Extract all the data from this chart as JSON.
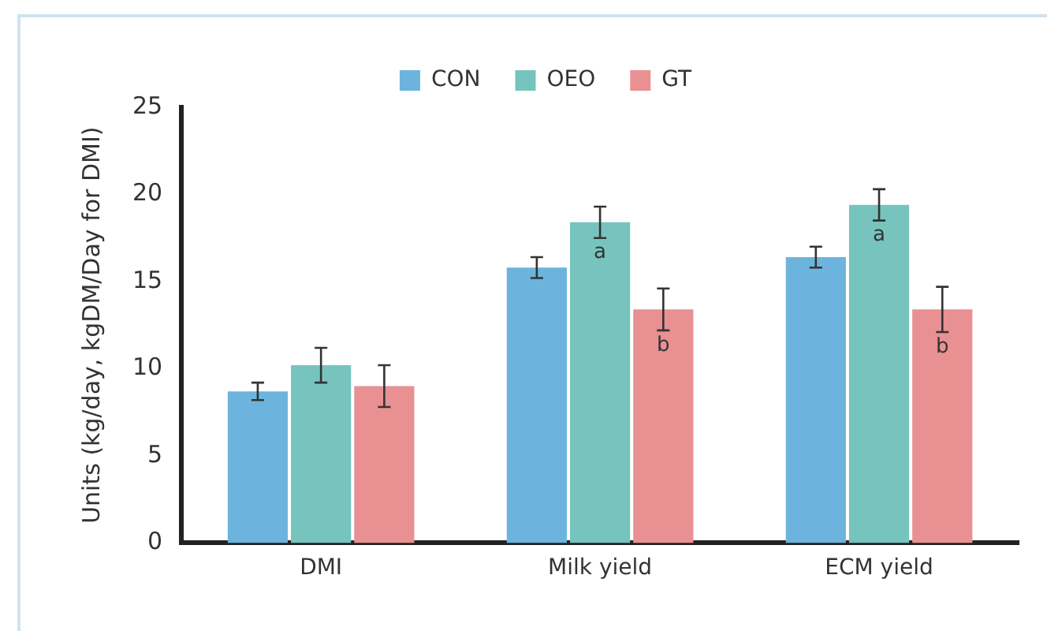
{
  "chart_data": {
    "type": "bar",
    "ylabel": "Units (kg/day, kgDM/Day for DMI)",
    "categories": [
      "DMI",
      "Milk yield",
      "ECM yield"
    ],
    "series": [
      {
        "name": "CON",
        "color": "#6cb4dd",
        "values": [
          8.7,
          15.8,
          16.4
        ],
        "errors": [
          0.5,
          0.6,
          0.6
        ]
      },
      {
        "name": "OEO",
        "color": "#76c4bd",
        "values": [
          10.2,
          18.4,
          19.4
        ],
        "errors": [
          1.0,
          0.9,
          0.9
        ],
        "value_labels": [
          null,
          "a",
          "a"
        ]
      },
      {
        "name": "GT",
        "color": "#e99093",
        "values": [
          9.0,
          13.4,
          13.4
        ],
        "errors": [
          1.2,
          1.2,
          1.3
        ],
        "value_labels": [
          null,
          "b",
          "b"
        ]
      }
    ],
    "ylim": [
      0,
      25
    ],
    "yticks": [
      0,
      5,
      10,
      15,
      20,
      25
    ],
    "grid": false,
    "legend": "top"
  }
}
